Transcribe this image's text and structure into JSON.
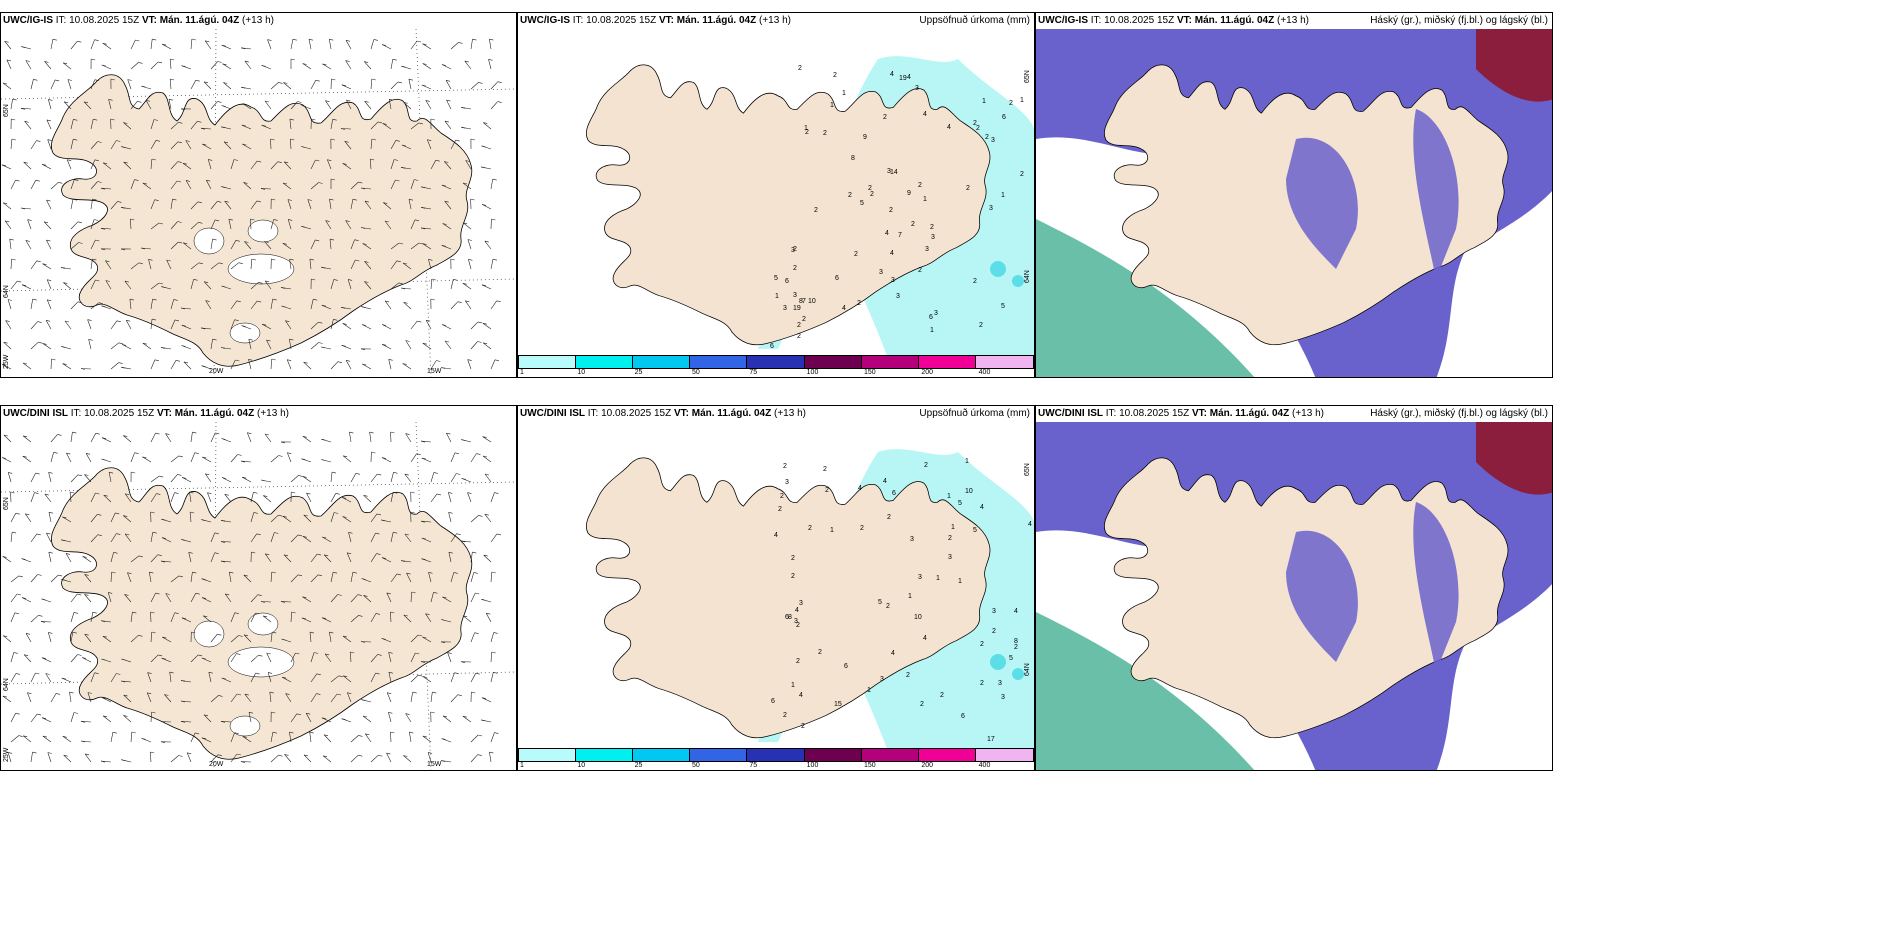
{
  "rows": [
    {
      "model": "UWC/IG-IS",
      "it_label": "IT:",
      "it_value": "10.08.2025 15Z",
      "vt_label": "VT:",
      "vt_value": "Mán. 11.ágú. 04Z",
      "lead": "(+13 h)",
      "precip_values": [
        "1",
        "1",
        "2",
        "2",
        "2",
        "2",
        "1",
        "4",
        "2",
        "2",
        "2",
        "1",
        "1",
        "1",
        "2",
        "3",
        "2",
        "2",
        "4",
        "6",
        "2",
        "2",
        "2",
        "3",
        "4",
        "5",
        "6",
        "3",
        "5",
        "1",
        "2",
        "4",
        "3",
        "2",
        "2",
        "4",
        "7",
        "6",
        "2",
        "3",
        "3",
        "2",
        "2",
        "2",
        "3",
        "3",
        "2",
        "1",
        "2",
        "3",
        "2",
        "3",
        "4",
        "5",
        "7",
        "6",
        "19",
        "9",
        "19",
        "3",
        "10",
        "8",
        "2",
        "8",
        "4",
        "6",
        "9",
        "3",
        "2",
        "1",
        "14",
        "2",
        "3",
        "2",
        "2",
        "2"
      ],
      "wind_panel_shading": "#f5e6d3"
    },
    {
      "model": "UWC/DINI ISL",
      "it_label": "IT:",
      "it_value": "10.08.2025 15Z",
      "vt_label": "VT:",
      "vt_value": "Mán. 11.ágú. 04Z",
      "lead": "(+13 h)",
      "precip_values": [
        "1",
        "1",
        "2",
        "1",
        "1",
        "1",
        "2",
        "1",
        "1",
        "2",
        "2",
        "2",
        "3",
        "2",
        "3",
        "4",
        "2",
        "2",
        "3",
        "3",
        "4",
        "2",
        "4",
        "5",
        "3",
        "4",
        "5",
        "2",
        "2",
        "3",
        "2",
        "4",
        "1",
        "4",
        "3",
        "5",
        "4",
        "2",
        "3",
        "2",
        "8",
        "5",
        "6",
        "6",
        "2",
        "3",
        "10",
        "8",
        "10",
        "15",
        "17",
        "2",
        "6",
        "6",
        "4",
        "2",
        "2",
        "3",
        "4",
        "2",
        "2",
        "4",
        "6",
        "2",
        "2",
        "2",
        "2",
        "2",
        "1"
      ],
      "wind_panel_shading": "#f5e6d3"
    }
  ],
  "precip_title": "Uppsöfnuð úrkoma (mm)",
  "cloud_title": "Háský (gr.), miðský (fj.bl.) og lágský (bl.)",
  "wind_axis": {
    "lat_labels": [
      "65N",
      "64N"
    ],
    "lon_labels": [
      "20W",
      "15W"
    ],
    "corner_label": "25W"
  },
  "precip_axis": {
    "lat_labels": [
      "65N",
      "64N"
    ]
  },
  "precip_colorbar": {
    "ticks": [
      "1",
      "10",
      "25",
      "50",
      "75",
      "100",
      "150",
      "200",
      "400"
    ],
    "colors": [
      "#b8fbfb",
      "#00f0f0",
      "#00c8f0",
      "#3264e6",
      "#2830b4",
      "#6e0050",
      "#b4007a",
      "#f00096",
      "#f0b4f0"
    ]
  },
  "colors": {
    "land": "#f4e3d0",
    "precip_light": "#b8f6f6",
    "precip_mid": "#5cdee8",
    "cloud_high": "#6a62cc",
    "cloud_mid": "#8a1e3c",
    "cloud_low": "#5ab8a0"
  }
}
